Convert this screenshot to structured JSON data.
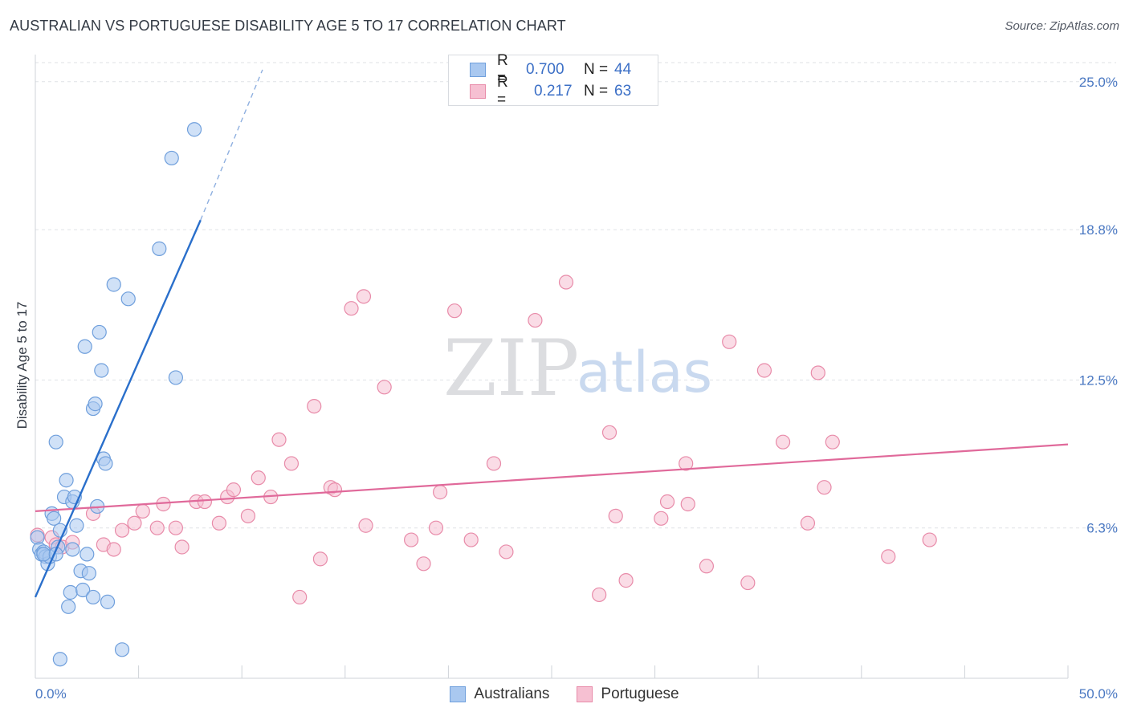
{
  "title": "AUSTRALIAN VS PORTUGUESE DISABILITY AGE 5 TO 17 CORRELATION CHART",
  "source": "Source: ZipAtlas.com",
  "watermark": {
    "zip": "ZIP",
    "atlas": "atlas"
  },
  "legend": {
    "rows": [
      {
        "r_label": "R =",
        "r_value": "0.700",
        "n_label": "N =",
        "n_value": "44"
      },
      {
        "r_label": "R =",
        "r_value": "0.217",
        "n_label": "N =",
        "n_value": "63"
      }
    ]
  },
  "colors": {
    "blue_fill": "#a9c8f0",
    "blue_stroke": "#6f9fdc",
    "blue_line": "#2a6fcb",
    "pink_fill": "#f6c0d2",
    "pink_stroke": "#e88ba9",
    "pink_line": "#e0699a",
    "grid": "#dfe2e6",
    "tick_text": "#4a78c2"
  },
  "chart_data": {
    "type": "scatter",
    "title": "AUSTRALIAN VS PORTUGUESE DISABILITY AGE 5 TO 17 CORRELATION CHART",
    "xlabel": "",
    "ylabel": "Disability Age 5 to 17",
    "xlim": [
      0,
      50
    ],
    "ylim": [
      0,
      25.8
    ],
    "x_tick_labels": [
      {
        "value": 0,
        "label": "0.0%"
      },
      {
        "value": 50,
        "label": "50.0%"
      }
    ],
    "y_tick_labels": [
      {
        "value": 6.3,
        "label": "6.3%"
      },
      {
        "value": 12.5,
        "label": "12.5%"
      },
      {
        "value": 18.8,
        "label": "18.8%"
      },
      {
        "value": 25.0,
        "label": "25.0%"
      }
    ],
    "grid": true,
    "legend_position": "top-center",
    "series": [
      {
        "name": "Australians",
        "r": 0.7,
        "n": 44,
        "trend": {
          "x": [
            0,
            8.0
          ],
          "y": [
            3.4,
            19.2
          ],
          "dashed_extension_to": [
            11.0,
            25.5
          ]
        },
        "points": [
          [
            0.1,
            5.9
          ],
          [
            0.2,
            5.4
          ],
          [
            0.3,
            5.2
          ],
          [
            0.4,
            5.3
          ],
          [
            0.5,
            5.1
          ],
          [
            0.6,
            4.8
          ],
          [
            0.7,
            5.1
          ],
          [
            0.8,
            6.9
          ],
          [
            0.9,
            6.7
          ],
          [
            1.0,
            9.9
          ],
          [
            1.1,
            5.5
          ],
          [
            1.2,
            6.2
          ],
          [
            1.4,
            7.6
          ],
          [
            1.5,
            8.3
          ],
          [
            1.6,
            3.0
          ],
          [
            1.7,
            3.6
          ],
          [
            1.8,
            7.4
          ],
          [
            1.9,
            7.6
          ],
          [
            2.0,
            6.4
          ],
          [
            2.2,
            4.5
          ],
          [
            2.3,
            3.7
          ],
          [
            2.4,
            13.9
          ],
          [
            2.5,
            5.2
          ],
          [
            2.6,
            4.4
          ],
          [
            2.8,
            3.4
          ],
          [
            2.8,
            11.3
          ],
          [
            2.9,
            11.5
          ],
          [
            3.0,
            7.2
          ],
          [
            3.1,
            14.5
          ],
          [
            3.2,
            12.9
          ],
          [
            3.3,
            9.2
          ],
          [
            3.4,
            9.0
          ],
          [
            3.5,
            3.2
          ],
          [
            3.8,
            16.5
          ],
          [
            4.2,
            1.2
          ],
          [
            4.5,
            15.9
          ],
          [
            6.0,
            18.0
          ],
          [
            6.6,
            21.8
          ],
          [
            6.8,
            12.6
          ],
          [
            7.7,
            23.0
          ],
          [
            1.2,
            0.8
          ],
          [
            0.4,
            5.2
          ],
          [
            1.0,
            5.2
          ],
          [
            1.8,
            5.4
          ]
        ]
      },
      {
        "name": "Portuguese",
        "r": 0.217,
        "n": 63,
        "trend": {
          "x": [
            0,
            50
          ],
          "y": [
            7.0,
            9.8
          ]
        },
        "points": [
          [
            0.1,
            6.0
          ],
          [
            0.8,
            5.9
          ],
          [
            1.0,
            5.6
          ],
          [
            1.3,
            5.5
          ],
          [
            1.8,
            5.7
          ],
          [
            2.8,
            6.9
          ],
          [
            3.3,
            5.6
          ],
          [
            3.8,
            5.4
          ],
          [
            4.2,
            6.2
          ],
          [
            4.8,
            6.5
          ],
          [
            5.2,
            7.0
          ],
          [
            5.9,
            6.3
          ],
          [
            6.2,
            7.3
          ],
          [
            6.8,
            6.3
          ],
          [
            7.1,
            5.5
          ],
          [
            7.8,
            7.4
          ],
          [
            8.2,
            7.4
          ],
          [
            8.9,
            6.5
          ],
          [
            9.3,
            7.6
          ],
          [
            9.6,
            7.9
          ],
          [
            10.3,
            6.8
          ],
          [
            10.8,
            8.4
          ],
          [
            11.4,
            7.6
          ],
          [
            11.8,
            10.0
          ],
          [
            12.4,
            9.0
          ],
          [
            12.8,
            3.4
          ],
          [
            13.5,
            11.4
          ],
          [
            13.8,
            5.0
          ],
          [
            14.3,
            8.0
          ],
          [
            14.5,
            7.9
          ],
          [
            15.3,
            15.5
          ],
          [
            15.9,
            16.0
          ],
          [
            16.0,
            6.4
          ],
          [
            16.9,
            12.2
          ],
          [
            18.2,
            5.8
          ],
          [
            18.8,
            4.8
          ],
          [
            19.4,
            6.3
          ],
          [
            19.6,
            7.8
          ],
          [
            20.3,
            15.4
          ],
          [
            21.1,
            5.8
          ],
          [
            22.2,
            9.0
          ],
          [
            22.8,
            5.3
          ],
          [
            24.2,
            15.0
          ],
          [
            25.7,
            16.6
          ],
          [
            27.3,
            3.5
          ],
          [
            27.8,
            10.3
          ],
          [
            28.1,
            6.8
          ],
          [
            28.6,
            4.1
          ],
          [
            30.3,
            6.7
          ],
          [
            30.6,
            7.4
          ],
          [
            31.5,
            9.0
          ],
          [
            31.6,
            7.3
          ],
          [
            32.5,
            4.7
          ],
          [
            33.6,
            14.1
          ],
          [
            34.5,
            4.0
          ],
          [
            35.3,
            12.9
          ],
          [
            36.2,
            9.9
          ],
          [
            37.4,
            6.5
          ],
          [
            37.9,
            12.8
          ],
          [
            38.2,
            8.0
          ],
          [
            38.6,
            9.9
          ],
          [
            41.3,
            5.1
          ],
          [
            43.3,
            5.8
          ]
        ]
      }
    ]
  }
}
